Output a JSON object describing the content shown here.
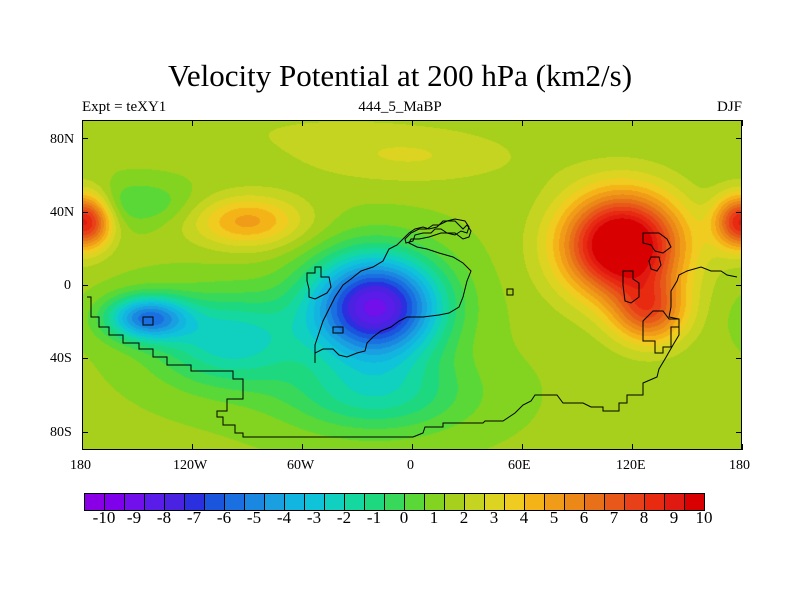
{
  "title": "Velocity Potential at 200 hPa (km2/s)",
  "subtitle_left": "Expt = teXY1",
  "subtitle_center": "444_5_MaBP",
  "subtitle_right": "DJF",
  "y_ticks": [
    "80N",
    "40N",
    "0",
    "40S",
    "80S"
  ],
  "y_tick_values": [
    80,
    40,
    0,
    -40,
    -80
  ],
  "x_ticks": [
    "180",
    "120W",
    "60W",
    "0",
    "60E",
    "120E",
    "180"
  ],
  "x_tick_values": [
    -180,
    -120,
    -60,
    0,
    60,
    120,
    180
  ],
  "chart_data": {
    "type": "heatmap",
    "title": "Velocity Potential at 200 hPa (km2/s)",
    "x_range": [
      -180,
      180
    ],
    "y_range": [
      -90,
      90
    ],
    "colorbar_labels": [
      "-10",
      "-9",
      "-8",
      "-7",
      "-6",
      "-5",
      "-4",
      "-3",
      "-2",
      "-1",
      "0",
      "1",
      "2",
      "3",
      "4",
      "5",
      "6",
      "7",
      "8",
      "9",
      "10"
    ],
    "colorbar_colors": [
      "#8a00e6",
      "#7f00ea",
      "#7110ea",
      "#5a1ce8",
      "#4a22e2",
      "#2a2fe0",
      "#1a55dd",
      "#1a70e0",
      "#1a88e0",
      "#1aa0e0",
      "#12b4e0",
      "#0fc4d8",
      "#10d0c0",
      "#14d8a0",
      "#1ed880",
      "#38d85a",
      "#5ad838",
      "#82d420",
      "#a6d01c",
      "#c4d420",
      "#dcd420",
      "#f0cc20",
      "#f4b418",
      "#f09c18",
      "#ec8818",
      "#e87018",
      "#e85818",
      "#e84018",
      "#e82a10",
      "#e01a10",
      "#d80000"
    ],
    "extremes": {
      "minimum_region": "South America / Atlantic (about -10)",
      "maximum_region": "Maritime Continent / East Asia (about 10)"
    }
  }
}
